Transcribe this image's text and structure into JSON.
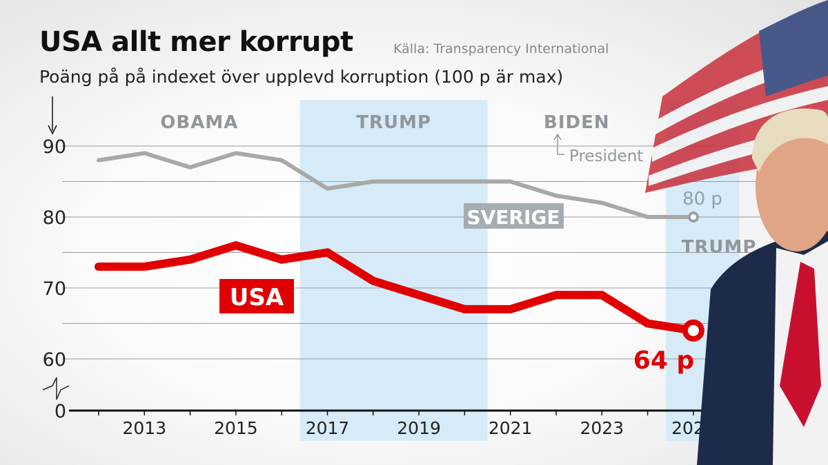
{
  "header": {
    "title": "USA allt mer korrupt",
    "source": "Källa: Transparency International",
    "subtitle": "Poäng på på indexet över upplevd korruption (100 p är max)"
  },
  "chart_data": {
    "type": "line",
    "title": "USA allt mer korrupt",
    "subtitle": "Poäng på på indexet över upplevd korruption (100 p är max)",
    "x": [
      2012,
      2013,
      2014,
      2015,
      2016,
      2017,
      2018,
      2019,
      2020,
      2021,
      2022,
      2023,
      2024,
      2025
    ],
    "x_tick_labels": [
      "2013",
      "2015",
      "2017",
      "2019",
      "2021",
      "2023",
      "2025"
    ],
    "y_tick_labels": [
      "0",
      "60",
      "70",
      "80",
      "90"
    ],
    "ylim": [
      60,
      90
    ],
    "y_axis_broken": true,
    "grid": true,
    "series": [
      {
        "name": "USA",
        "color": "#e00000",
        "values": [
          73,
          73,
          74,
          76,
          74,
          75,
          71,
          69,
          67,
          67,
          69,
          69,
          65,
          64
        ],
        "end_label": "64 p"
      },
      {
        "name": "SVERIGE",
        "color": "#a8a8a8",
        "values": [
          88,
          89,
          87,
          89,
          88,
          84,
          85,
          85,
          85,
          85,
          83,
          82,
          80,
          80
        ],
        "end_label": "80 p"
      }
    ],
    "periods": [
      {
        "label": "OBAMA",
        "from": 2012,
        "to": 2016.4,
        "shaded": false
      },
      {
        "label": "TRUMP",
        "from": 2016.4,
        "to": 2020.5,
        "shaded": true
      },
      {
        "label": "BIDEN",
        "from": 2020.5,
        "to": 2024.4,
        "shaded": false
      },
      {
        "label": "TRUMP",
        "from": 2024.4,
        "to": 2026,
        "shaded": true
      }
    ],
    "annotation": "President",
    "shade_color": "#d6ebf7"
  }
}
